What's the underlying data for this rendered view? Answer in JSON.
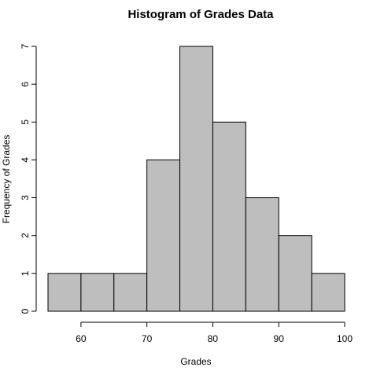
{
  "chart_data": {
    "type": "bar",
    "title": "Histogram of Grades Data",
    "xlabel": "Grades",
    "ylabel": "Frequency of Grades",
    "bin_edges": [
      55,
      60,
      65,
      70,
      75,
      80,
      85,
      90,
      95,
      100
    ],
    "values": [
      1,
      1,
      1,
      4,
      7,
      5,
      3,
      2,
      1
    ],
    "xlim": [
      55,
      100
    ],
    "ylim": [
      0,
      7
    ],
    "x_ticks": [
      60,
      70,
      80,
      90,
      100
    ],
    "y_ticks": [
      0,
      1,
      2,
      3,
      4,
      5,
      6,
      7
    ],
    "bar_fill": "#bebebe",
    "bar_stroke": "#000000",
    "grid": false,
    "legend": "none"
  }
}
